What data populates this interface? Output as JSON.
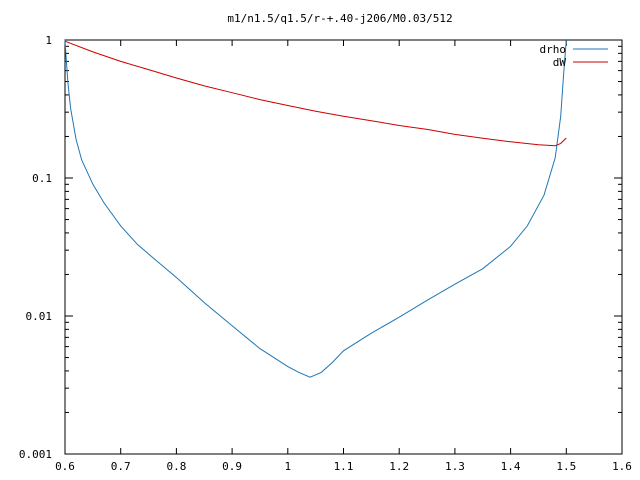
{
  "chart_data": {
    "type": "line",
    "title": "m1/n1.5/q1.5/r-+.40-j206/M0.03/512",
    "xlabel": "",
    "ylabel": "",
    "xlim": [
      0.6,
      1.6
    ],
    "ylim": [
      0.001,
      1
    ],
    "y_scale": "log",
    "grid": false,
    "legend_position": "top-right",
    "x_ticks": [
      "0.6",
      "0.7",
      "0.8",
      "0.9",
      "1",
      "1.1",
      "1.2",
      "1.3",
      "1.4",
      "1.5",
      "1.6"
    ],
    "y_ticks": [
      "1",
      "0.1",
      "0.01",
      "0.001"
    ],
    "series": [
      {
        "name": "drho",
        "color": "#1f77b4",
        "x": [
          0.6,
          0.602,
          0.605,
          0.61,
          0.62,
          0.63,
          0.65,
          0.67,
          0.7,
          0.73,
          0.76,
          0.8,
          0.85,
          0.9,
          0.95,
          1.0,
          1.02,
          1.04,
          1.06,
          1.08,
          1.1,
          1.15,
          1.2,
          1.25,
          1.3,
          1.35,
          1.4,
          1.43,
          1.46,
          1.48,
          1.49,
          1.495,
          1.5
        ],
        "y": [
          1.0,
          0.75,
          0.5,
          0.32,
          0.19,
          0.135,
          0.09,
          0.066,
          0.045,
          0.033,
          0.026,
          0.019,
          0.0125,
          0.0085,
          0.0058,
          0.0043,
          0.0039,
          0.0036,
          0.0039,
          0.0046,
          0.0056,
          0.0075,
          0.0098,
          0.013,
          0.017,
          0.022,
          0.032,
          0.045,
          0.075,
          0.14,
          0.28,
          0.55,
          1.0
        ]
      },
      {
        "name": "dW",
        "color": "#cc0000",
        "x": [
          0.6,
          0.65,
          0.7,
          0.75,
          0.8,
          0.85,
          0.9,
          0.95,
          1.0,
          1.05,
          1.1,
          1.15,
          1.2,
          1.25,
          1.3,
          1.35,
          1.4,
          1.45,
          1.48,
          1.49,
          1.5
        ],
        "y": [
          0.98,
          0.82,
          0.7,
          0.61,
          0.53,
          0.465,
          0.415,
          0.37,
          0.335,
          0.305,
          0.28,
          0.26,
          0.24,
          0.225,
          0.207,
          0.194,
          0.183,
          0.174,
          0.171,
          0.178,
          0.195
        ]
      }
    ]
  }
}
